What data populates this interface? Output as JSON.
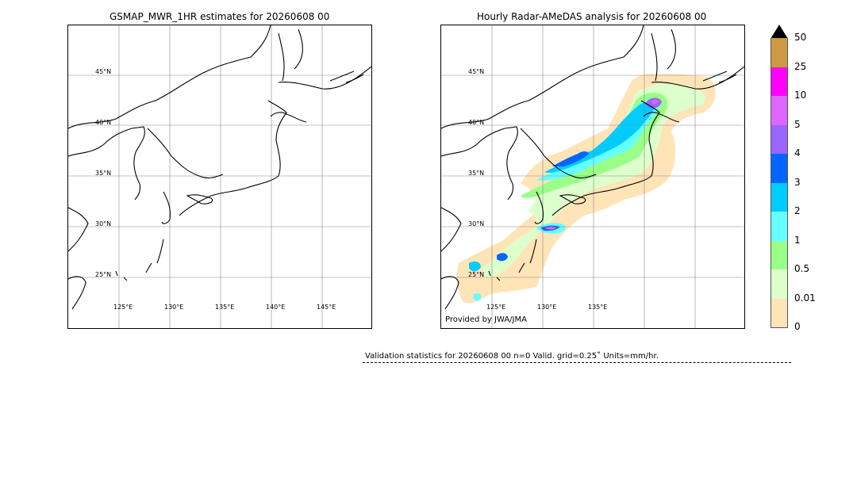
{
  "left_panel": {
    "title": "GSMAP_MWR_1HR estimates for 20260608 00",
    "lat_labels": [
      "45°N",
      "40°N",
      "35°N",
      "30°N",
      "25°N"
    ],
    "lon_labels": [
      "125°E",
      "130°E",
      "135°E",
      "140°E",
      "145°E"
    ]
  },
  "right_panel": {
    "title": "Hourly Radar-AMeDAS analysis for 20260608 00",
    "lat_labels": [
      "45°N",
      "40°N",
      "35°N",
      "30°N",
      "25°N"
    ],
    "lon_labels": [
      "125°E",
      "130°E",
      "135°E"
    ],
    "credit": "Provided by JWA/JMA"
  },
  "colorbar": {
    "labels": [
      "50",
      "25",
      "10",
      "5",
      "4",
      "3",
      "2",
      "1",
      "0.5",
      "0.01",
      "0"
    ],
    "colors": [
      "#cc9944",
      "#ff00ff",
      "#dd66ff",
      "#9966ff",
      "#0066ff",
      "#00ccff",
      "#66ffff",
      "#99ff88",
      "#ddffcc",
      "#ffe4b8"
    ],
    "units": "mm/hr"
  },
  "stats": {
    "text": "Validation statistics for 20260608 00  n=0 Valid. grid=0.25˚ Units=mm/hr."
  }
}
